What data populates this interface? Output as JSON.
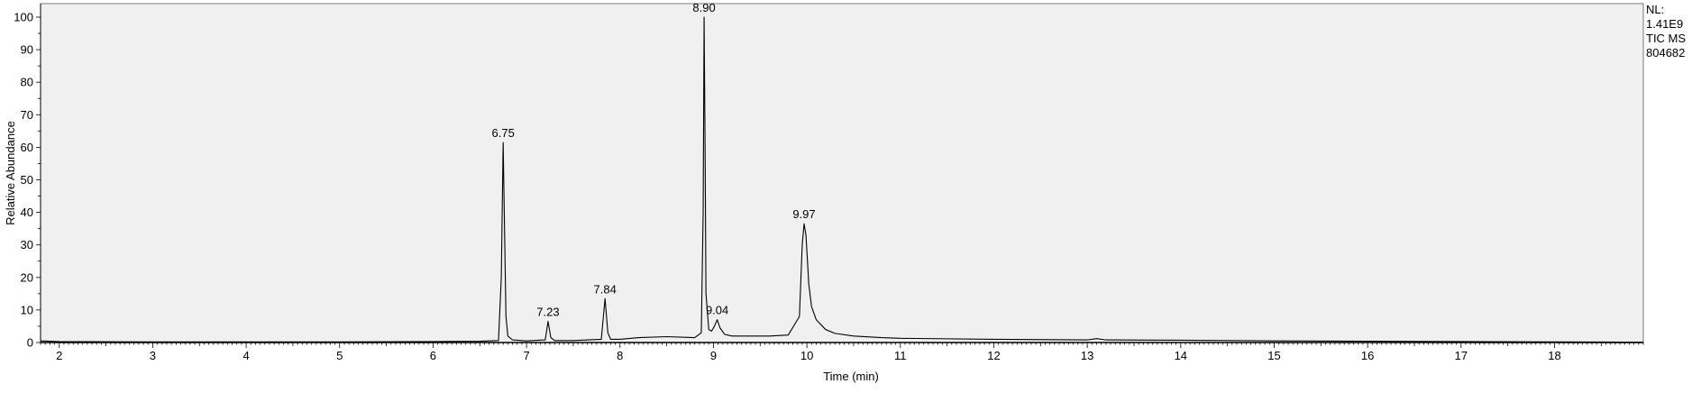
{
  "chart_data": {
    "type": "line",
    "xlabel": "Time (min)",
    "ylabel": "Relative Abundance",
    "xlim": [
      1.8,
      18.95
    ],
    "ylim": [
      0,
      100
    ],
    "x_ticks": [
      2,
      3,
      4,
      5,
      6,
      7,
      8,
      9,
      10,
      11,
      12,
      13,
      14,
      15,
      16,
      17,
      18
    ],
    "y_ticks": [
      0,
      10,
      20,
      30,
      40,
      50,
      60,
      70,
      80,
      90,
      100
    ],
    "grid": false,
    "plot_background": "#f0f0f0",
    "line_color": "#000000",
    "info": [
      "NL:",
      "1.41E9",
      "TIC  MS",
      "804682"
    ],
    "peaks": [
      {
        "label": "6.75",
        "rt": 6.75,
        "height": 61.5
      },
      {
        "label": "7.23",
        "rt": 7.23,
        "height": 6.5
      },
      {
        "label": "7.84",
        "rt": 7.84,
        "height": 13.5
      },
      {
        "label": "8.90",
        "rt": 8.9,
        "height": 100
      },
      {
        "label": "9.04",
        "rt": 9.04,
        "height": 7.0
      },
      {
        "label": "9.97",
        "rt": 9.97,
        "height": 36.5
      }
    ],
    "series": [
      {
        "x": [
          1.8,
          2.0,
          3.0,
          4.0,
          5.0,
          6.0,
          6.5,
          6.7,
          6.73,
          6.75,
          6.76,
          6.78,
          6.8,
          6.85,
          7.0,
          7.2,
          7.23,
          7.26,
          7.3,
          7.5,
          7.8,
          7.84,
          7.87,
          7.9,
          8.0,
          8.2,
          8.5,
          8.8,
          8.87,
          8.89,
          8.9,
          8.91,
          8.92,
          8.95,
          8.98,
          9.01,
          9.04,
          9.07,
          9.12,
          9.2,
          9.4,
          9.6,
          9.8,
          9.92,
          9.95,
          9.97,
          9.99,
          10.02,
          10.05,
          10.1,
          10.2,
          10.3,
          10.5,
          10.8,
          11.0,
          12.0,
          13.0,
          13.1,
          13.2,
          14.0,
          15.0,
          16.0,
          17.0,
          18.0,
          18.95
        ],
        "y": [
          0.5,
          0.3,
          0.2,
          0.2,
          0.2,
          0.3,
          0.4,
          0.6,
          20.0,
          61.5,
          43.0,
          8.0,
          2.0,
          0.8,
          0.5,
          0.8,
          6.5,
          1.5,
          0.6,
          0.6,
          1.0,
          13.5,
          3.0,
          1.0,
          1.0,
          1.5,
          1.8,
          1.5,
          3.0,
          40.0,
          100.0,
          62.0,
          15.0,
          4.0,
          3.5,
          5.0,
          7.0,
          4.5,
          2.5,
          2.0,
          2.0,
          2.0,
          2.3,
          8.0,
          30.0,
          36.5,
          33.0,
          18.0,
          11.0,
          7.0,
          4.0,
          2.8,
          2.0,
          1.5,
          1.3,
          1.0,
          0.8,
          1.2,
          0.8,
          0.7,
          0.5,
          0.4,
          0.3,
          0.2,
          0.1
        ]
      }
    ]
  }
}
